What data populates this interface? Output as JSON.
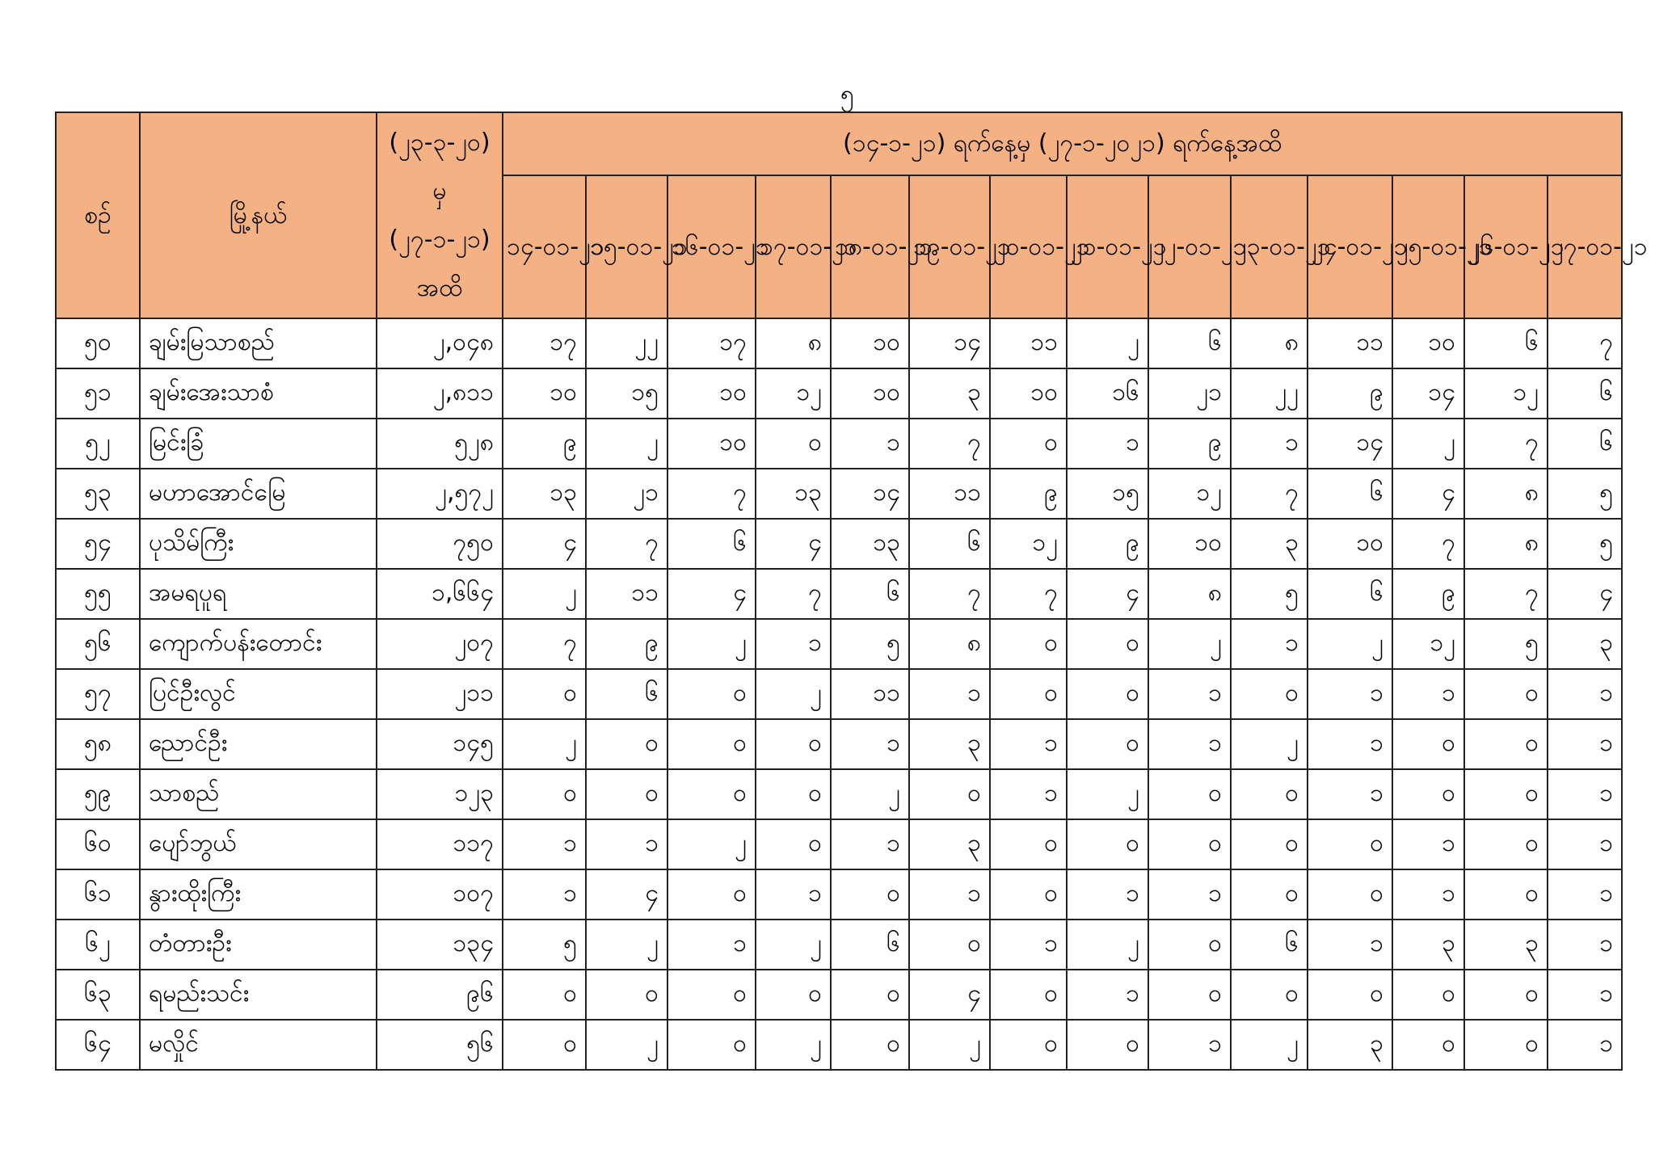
{
  "page_number": "၅",
  "header": {
    "no": "စဉ်",
    "township": "မြို့နယ်",
    "cumulative": "(၂၃-၃-၂၀) မှ (၂၇-၁-၂၁) အထိ",
    "period": "(၁၄-၁-၂၁) ရက်နေ့မှ (၂၇-၁-၂၀၂၁) ရက်နေ့အထိ",
    "dates": [
      "၁၄-၀၁-၂၁",
      "၁၅-၀၁-၂၁",
      "၁၆-၀၁-၂၁",
      "၁၇-၀၁-၂၁",
      "၁၈-၀၁-၂၁",
      "၁၉-၀၁-၂၁",
      "၂၀-၀၁-၂၁",
      "၂၁-၀၁-၂၁",
      "၂၂-၀၁-၂၁",
      "၂၃-၀၁-၂၁",
      "၂၄-၀၁-၂၁",
      "၂၅-၀၁-၂၁",
      "၂၆-၀၁-၂၁",
      "၂၇-၀၁-၂၁"
    ]
  },
  "rows": [
    {
      "no": "၅၀",
      "name": "ချမ်းမြသာစည်",
      "total": "၂,၀၄၈",
      "values": [
        "၁၇",
        "၂၂",
        "၁၇",
        "၈",
        "၁၀",
        "၁၄",
        "၁၁",
        "၂",
        "၆",
        "၈",
        "၁၁",
        "၁၀",
        "၆",
        "၇"
      ]
    },
    {
      "no": "၅၁",
      "name": "ချမ်းအေးသာစံ",
      "total": "၂,၈၁၁",
      "values": [
        "၁၀",
        "၁၅",
        "၁၀",
        "၁၂",
        "၁၀",
        "၃",
        "၁၀",
        "၁၆",
        "၂၁",
        "၂၂",
        "၉",
        "၁၄",
        "၁၂",
        "၆"
      ]
    },
    {
      "no": "၅၂",
      "name": "မြင်းခြံ",
      "total": "၅၂၈",
      "values": [
        "၉",
        "၂",
        "၁၀",
        "၀",
        "၁",
        "၇",
        "၀",
        "၁",
        "၉",
        "၁",
        "၁၄",
        "၂",
        "၇",
        "၆"
      ]
    },
    {
      "no": "၅၃",
      "name": "မဟာအောင်မြေ",
      "total": "၂,၅၇၂",
      "values": [
        "၁၃",
        "၂၁",
        "၇",
        "၁၃",
        "၁၄",
        "၁၁",
        "၉",
        "၁၅",
        "၁၂",
        "၇",
        "၆",
        "၄",
        "၈",
        "၅"
      ]
    },
    {
      "no": "၅၄",
      "name": "ပုသိမ်ကြီး",
      "total": "၇၅၀",
      "values": [
        "၄",
        "၇",
        "၆",
        "၄",
        "၁၃",
        "၆",
        "၁၂",
        "၉",
        "၁၀",
        "၃",
        "၁၀",
        "၇",
        "၈",
        "၅"
      ]
    },
    {
      "no": "၅၅",
      "name": "အမရပူရ",
      "total": "၁,၆၆၄",
      "values": [
        "၂",
        "၁၁",
        "၄",
        "၇",
        "၆",
        "၇",
        "၇",
        "၄",
        "၈",
        "၅",
        "၆",
        "၉",
        "၇",
        "၄"
      ]
    },
    {
      "no": "၅၆",
      "name": "ကျောက်ပန်းတောင်း",
      "total": "၂၀၇",
      "values": [
        "၇",
        "၉",
        "၂",
        "၁",
        "၅",
        "၈",
        "၀",
        "၀",
        "၂",
        "၁",
        "၂",
        "၁၂",
        "၅",
        "၃"
      ]
    },
    {
      "no": "၅၇",
      "name": "ပြင်ဦးလွင်",
      "total": "၂၁၁",
      "values": [
        "၀",
        "၆",
        "၀",
        "၂",
        "၁၁",
        "၁",
        "၀",
        "၀",
        "၁",
        "၀",
        "၁",
        "၁",
        "၀",
        "၁"
      ]
    },
    {
      "no": "၅၈",
      "name": "ညောင်ဦး",
      "total": "၁၄၅",
      "values": [
        "၂",
        "၀",
        "၀",
        "၀",
        "၁",
        "၃",
        "၁",
        "၀",
        "၁",
        "၂",
        "၁",
        "၀",
        "၀",
        "၁"
      ]
    },
    {
      "no": "၅၉",
      "name": "သာစည်",
      "total": "၁၂၃",
      "values": [
        "၀",
        "၀",
        "၀",
        "၀",
        "၂",
        "၀",
        "၁",
        "၂",
        "၀",
        "၀",
        "၁",
        "၀",
        "၀",
        "၁"
      ]
    },
    {
      "no": "၆၀",
      "name": "ပျော်ဘွယ်",
      "total": "၁၁၇",
      "values": [
        "၁",
        "၁",
        "၂",
        "၀",
        "၁",
        "၃",
        "၀",
        "၀",
        "၀",
        "၀",
        "၀",
        "၁",
        "၀",
        "၁"
      ]
    },
    {
      "no": "၆၁",
      "name": "နွားထိုးကြီး",
      "total": "၁၀၇",
      "values": [
        "၁",
        "၄",
        "၀",
        "၁",
        "၀",
        "၁",
        "၀",
        "၁",
        "၁",
        "၀",
        "၀",
        "၁",
        "၀",
        "၁"
      ]
    },
    {
      "no": "၆၂",
      "name": "တံတားဦး",
      "total": "၁၃၄",
      "values": [
        "၅",
        "၂",
        "၁",
        "၂",
        "၆",
        "၀",
        "၁",
        "၂",
        "၀",
        "၆",
        "၁",
        "၃",
        "၃",
        "၁"
      ]
    },
    {
      "no": "၆၃",
      "name": "ရမည်းသင်း",
      "total": "၉၆",
      "values": [
        "၀",
        "၀",
        "၀",
        "၀",
        "၀",
        "၄",
        "၀",
        "၁",
        "၀",
        "၀",
        "၀",
        "၀",
        "၀",
        "၁"
      ]
    },
    {
      "no": "၆၄",
      "name": "မလှိုင်",
      "total": "၅၆",
      "values": [
        "၀",
        "၂",
        "၀",
        "၂",
        "၀",
        "၂",
        "၀",
        "၀",
        "၁",
        "၂",
        "၃",
        "၀",
        "၀",
        "၁"
      ]
    }
  ],
  "colors": {
    "header_bg": "#f4b183",
    "border": "#222222"
  }
}
